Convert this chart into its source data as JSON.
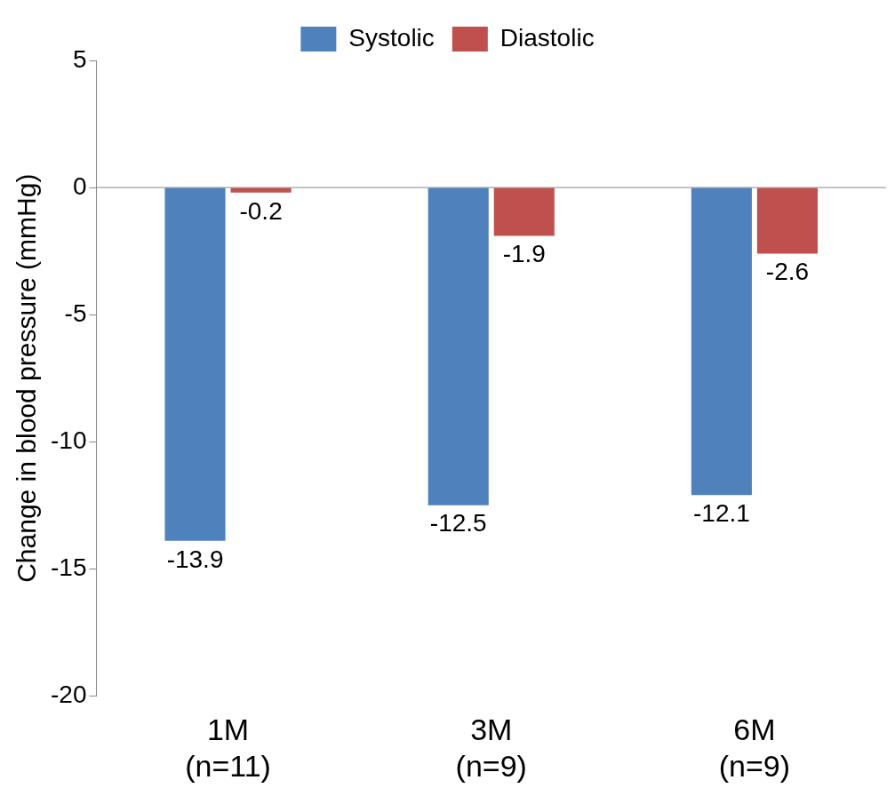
{
  "chart_data": {
    "type": "bar",
    "ylabel": "Change in blood pressure (mmHg)",
    "categories": [
      "1M\n(n=11)",
      "3M\n(n=9)",
      "6M\n(n=9)"
    ],
    "series": [
      {
        "name": "Systolic",
        "color": "#4f81bd",
        "values": [
          -13.9,
          -12.5,
          -12.1
        ]
      },
      {
        "name": "Diastolic",
        "color": "#c0504d",
        "values": [
          -0.2,
          -1.9,
          -2.6
        ]
      }
    ],
    "ref_lines": [
      {
        "axis": "y",
        "value": 0,
        "color": "#888888"
      }
    ],
    "ylim": [
      -20,
      5
    ],
    "yticks": [
      -20,
      -15,
      -10,
      -5,
      0,
      5
    ],
    "grid": false,
    "legend": "top",
    "data_labels": true
  }
}
